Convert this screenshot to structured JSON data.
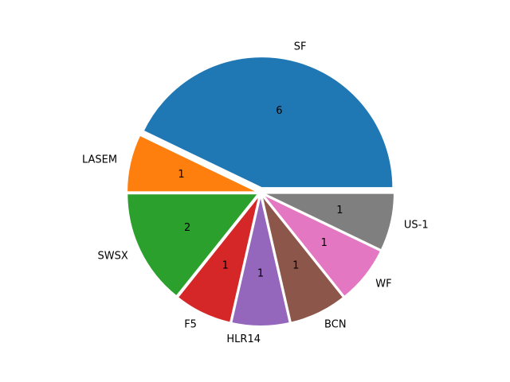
{
  "chart_data": {
    "type": "pie",
    "categories": [
      "SF",
      "LASEM",
      "SWSX",
      "F5",
      "HLR14",
      "BCN",
      "WF",
      "US-1"
    ],
    "values": [
      6,
      1,
      2,
      1,
      1,
      1,
      1,
      1
    ],
    "colors": [
      "#1f77b4",
      "#ff7f0e",
      "#2ca02c",
      "#d62728",
      "#9467bd",
      "#8c564b",
      "#e377c2",
      "#7f7f7f"
    ]
  }
}
